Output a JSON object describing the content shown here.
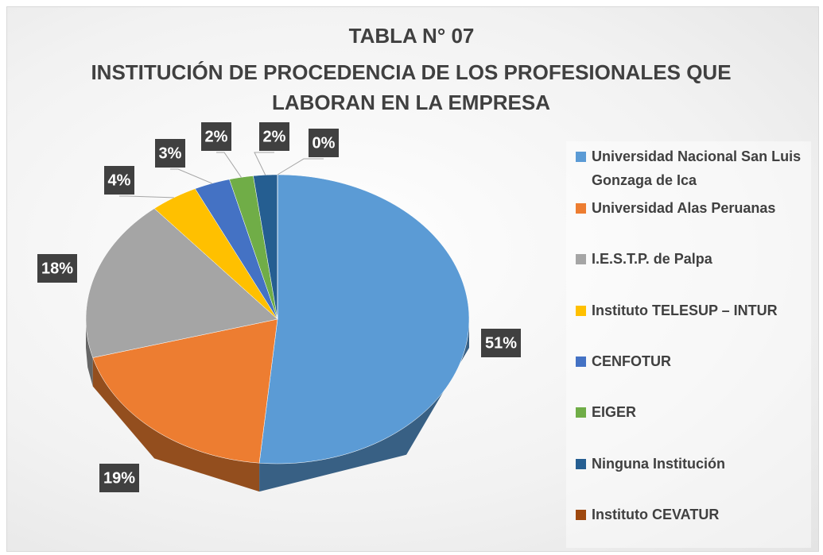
{
  "chart_data": {
    "type": "pie",
    "title": "TABLA N° 07",
    "subtitle": "INSTITUCIÓN DE PROCEDENCIA DE LOS PROFESIONALES QUE LABORAN EN LA EMPRESA",
    "categories": [
      "Universidad Nacional San Luis Gonzaga de Ica",
      "Universidad Alas Peruanas",
      "I.E.S.T.P. de Palpa",
      "Instituto TELESUP – INTUR",
      "CENFOTUR",
      "EIGER",
      "Ninguna Institución",
      "Instituto CEVATUR"
    ],
    "values": [
      51,
      19,
      18,
      4,
      3,
      2,
      2,
      0
    ],
    "value_labels": [
      "51%",
      "19%",
      "18%",
      "4%",
      "3%",
      "2%",
      "2%",
      "0%"
    ],
    "colors": [
      "#5b9bd5",
      "#ed7d31",
      "#a5a5a5",
      "#ffc000",
      "#4472c4",
      "#70ad47",
      "#255e91",
      "#9e480e"
    ],
    "legend": "right"
  }
}
